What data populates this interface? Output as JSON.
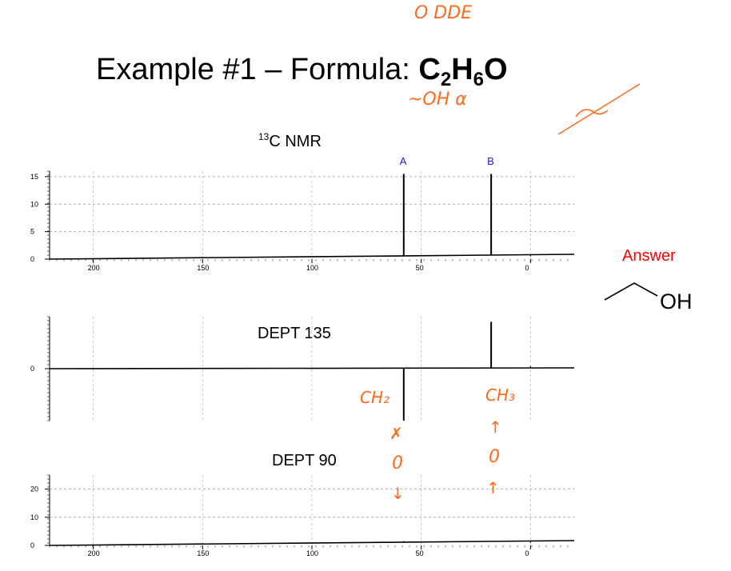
{
  "title": {
    "prefix": "Example #1 – Formula: ",
    "c": "C",
    "c_sub": "2",
    "h": "H",
    "h_sub": "6",
    "o": "O"
  },
  "labels": {
    "c13_sup": "13",
    "c13_text": "C NMR",
    "dept135": "DEPT 135",
    "dept90": "DEPT 90",
    "answer": "Answer",
    "oh": "OH"
  },
  "handwriting": {
    "top": "O DDE",
    "under_title": "~OH  α",
    "ch2": "CH₂",
    "ch3": "CH₃",
    "down_arrow_x": "✗",
    "down_zero": "0",
    "down_arrow": "↓",
    "up_arrow_1": "↑",
    "up_zero": "0",
    "up_arrow_2": "↑"
  },
  "colors": {
    "peak_letters": "#1a1ae6",
    "answer": "#ff0000",
    "handwriting": "#ff6a1a"
  },
  "chart_data": [
    {
      "type": "line",
      "title": "13C NMR",
      "xlim": [
        220,
        -20
      ],
      "x_reversed": true,
      "xticks": [
        200,
        150,
        100,
        50,
        0
      ],
      "ylim": [
        0,
        16
      ],
      "yticks": [
        0,
        5,
        10,
        15
      ],
      "grid": true,
      "series": [
        {
          "peaks": [
            {
              "x": 58,
              "y": 15.5,
              "label": "A"
            },
            {
              "x": 18,
              "y": 15.5,
              "label": "B"
            },
            {
              "x": 0,
              "y": 0.5,
              "label": ""
            }
          ]
        }
      ]
    },
    {
      "type": "line",
      "title": "DEPT 135",
      "xlim": [
        220,
        -20
      ],
      "x_reversed": true,
      "ylim": [
        -10,
        10
      ],
      "yticks": [
        0
      ],
      "grid": true,
      "series": [
        {
          "peaks": [
            {
              "x": 58,
              "y": -10
            },
            {
              "x": 18,
              "y": 9
            },
            {
              "x": 0,
              "y": 0.5
            }
          ]
        }
      ]
    },
    {
      "type": "line",
      "title": "DEPT 90",
      "xlim": [
        220,
        -20
      ],
      "x_reversed": true,
      "xticks": [
        200,
        150,
        100,
        50,
        0
      ],
      "ylim": [
        0,
        25
      ],
      "yticks": [
        0,
        10,
        20
      ],
      "grid": true,
      "series": [
        {
          "peaks": [
            {
              "x": 58,
              "y": 1.5
            },
            {
              "x": 18,
              "y": 1.5
            },
            {
              "x": 0,
              "y": 1
            }
          ]
        }
      ]
    }
  ]
}
